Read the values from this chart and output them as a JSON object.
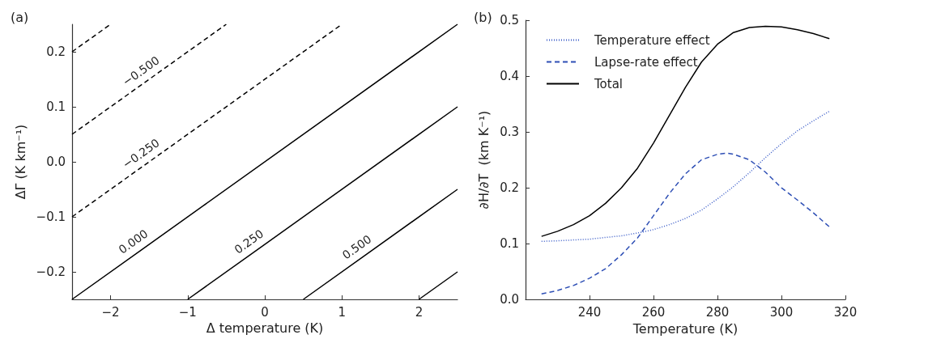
{
  "chart_data": [
    {
      "type": "line",
      "title": "(a)",
      "xlabel": "Δ temperature (K)",
      "ylabel": "ΔΓ (K km⁻¹)",
      "xlim": [
        -2.5,
        2.5
      ],
      "xticks": [
        {
          "value": -2,
          "label": "−2"
        },
        {
          "value": -1,
          "label": "−1"
        },
        0,
        1,
        2
      ],
      "ylim": [
        -0.25,
        0.25
      ],
      "yticks": [
        {
          "value": -0.2,
          "label": "−0.2"
        },
        {
          "value": -0.1,
          "label": "−0.1"
        },
        {
          "value": 0,
          "label": "0.0"
        },
        0.1,
        0.2
      ],
      "grid": false,
      "legend": false,
      "marker": "none",
      "series": [
        {
          "color": "#000000",
          "line_style": "dashed",
          "x": [
            -2.5,
            -2
          ],
          "values": [
            0.2,
            0.25
          ]
        },
        {
          "name": "−0.500",
          "color": "#000000",
          "line_style": "dashed",
          "x": [
            -2.5,
            -1.5,
            -0.5
          ],
          "values": [
            0.05,
            0.15,
            0.25
          ]
        },
        {
          "name": "−0.250",
          "color": "#000000",
          "line_style": "dashed",
          "x": [
            -2.5,
            -1.5,
            1
          ],
          "values": [
            -0.1,
            0,
            0.25
          ]
        },
        {
          "name": "0.000",
          "color": "#000000",
          "line_style": "solid",
          "x": [
            -2.5,
            -1.6,
            2.5
          ],
          "values": [
            -0.25,
            -0.16,
            0.25
          ]
        },
        {
          "name": "0.250",
          "color": "#000000",
          "line_style": "solid",
          "x": [
            -1,
            -0.1,
            2.5
          ],
          "values": [
            -0.25,
            -0.16,
            0.1
          ]
        },
        {
          "name": "0.500",
          "color": "#000000",
          "line_style": "solid",
          "x": [
            0.5,
            1.3,
            2.5
          ],
          "values": [
            -0.25,
            -0.17,
            -0.05
          ]
        },
        {
          "color": "#000000",
          "line_style": "solid",
          "x": [
            2,
            2.5
          ],
          "values": [
            -0.25,
            -0.2
          ]
        }
      ]
    },
    {
      "type": "line",
      "title": "(b)",
      "xlabel": "Temperature (K)",
      "ylabel": "∂H/∂T  (km K⁻¹)",
      "xlim": [
        220,
        320
      ],
      "xticks": [
        240,
        260,
        280,
        300,
        320
      ],
      "ylim": [
        0,
        0.5
      ],
      "yticks": [
        {
          "value": 0,
          "label": "0.0"
        },
        0.1,
        0.2,
        0.3,
        0.4,
        0.5
      ],
      "grid": false,
      "legend": "top left",
      "marker": "none",
      "series": [
        {
          "name": "Temperature effect",
          "color": "#3a5cc8",
          "line_style": "dotted",
          "x": [
            225,
            230,
            240,
            250,
            256,
            260,
            265,
            270,
            275,
            280,
            285,
            290,
            295,
            300,
            305,
            310,
            315
          ],
          "values": [
            0.104,
            0.105,
            0.108,
            0.114,
            0.12,
            0.125,
            0.134,
            0.145,
            0.16,
            0.18,
            0.202,
            0.227,
            0.254,
            0.279,
            0.302,
            0.32,
            0.337
          ]
        },
        {
          "name": "Lapse-rate effect",
          "color": "#2e4fb5",
          "line_style": "dashed",
          "x": [
            225,
            230,
            235,
            240,
            245,
            250,
            255,
            260,
            265,
            270,
            275,
            280,
            283,
            285,
            290,
            295,
            300,
            305,
            310,
            315
          ],
          "values": [
            0.01,
            0.016,
            0.025,
            0.038,
            0.055,
            0.08,
            0.11,
            0.15,
            0.19,
            0.225,
            0.25,
            0.26,
            0.262,
            0.26,
            0.25,
            0.228,
            0.2,
            0.178,
            0.155,
            0.13
          ]
        },
        {
          "name": "Total",
          "color": "#000000",
          "line_style": "solid",
          "x": [
            225,
            230,
            235,
            240,
            245,
            250,
            255,
            260,
            265,
            270,
            275,
            280,
            285,
            290,
            295,
            300,
            305,
            310,
            315
          ],
          "values": [
            0.113,
            0.122,
            0.134,
            0.15,
            0.172,
            0.2,
            0.235,
            0.28,
            0.33,
            0.38,
            0.425,
            0.457,
            0.478,
            0.487,
            0.489,
            0.488,
            0.483,
            0.476,
            0.467
          ]
        }
      ]
    }
  ]
}
